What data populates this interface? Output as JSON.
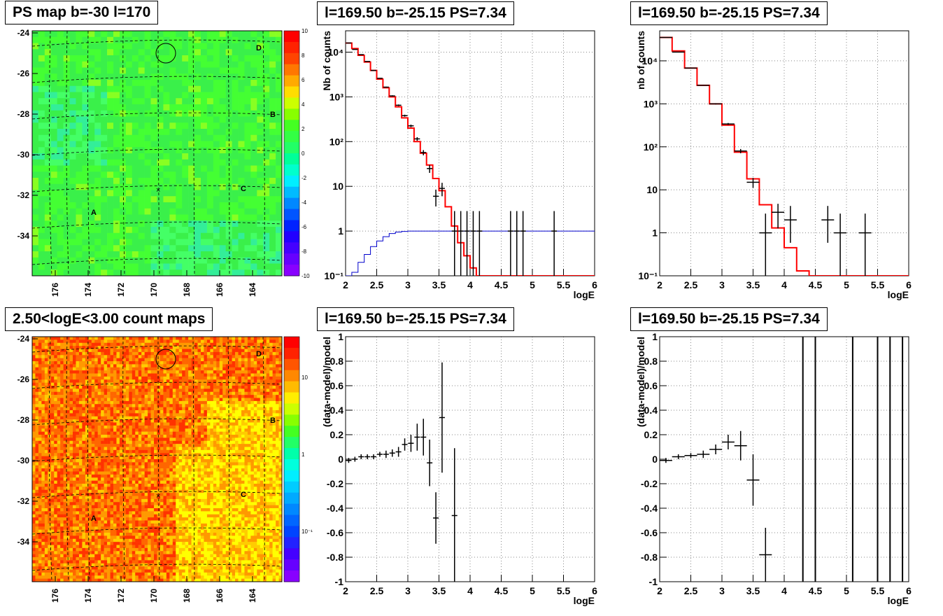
{
  "colors": {
    "data": "#000000",
    "model_total": "#ff0000",
    "model_component": "#0000cc",
    "grid": "#888888"
  },
  "maps": [
    {
      "title": "PS map b=-30 l=170",
      "y_ticks": [
        "-24",
        "-26",
        "-28",
        "-30",
        "-32",
        "-34"
      ],
      "x_ticks": [
        "176",
        "174",
        "172",
        "170",
        "168",
        "166",
        "164"
      ],
      "colorbar_ticks": [
        "10",
        "8",
        "6",
        "4",
        "2",
        "0",
        "-2",
        "-4",
        "-6",
        "-8",
        "-10"
      ],
      "labels": [
        "A",
        "B",
        "C",
        "D"
      ],
      "palette": "ps"
    },
    {
      "title": "2.50<logE<3.00 count maps",
      "y_ticks": [
        "-24",
        "-26",
        "-28",
        "-30",
        "-32",
        "-34"
      ],
      "x_ticks": [
        "176",
        "174",
        "172",
        "170",
        "168",
        "166",
        "164"
      ],
      "colorbar_ticks": [
        "10",
        "1",
        "10⁻¹"
      ],
      "labels": [
        "A",
        "B",
        "C",
        "D"
      ],
      "palette": "counts"
    }
  ],
  "chart_data": [
    {
      "type": "line",
      "title": "l=169.50 b=-25.15 PS=7.34",
      "xlabel": "logE",
      "ylabel": "Nb of counts",
      "log_y": true,
      "grid": true,
      "xlim": [
        2,
        6
      ],
      "ylim": [
        0.1,
        30000
      ],
      "x_ticks": [
        "2",
        "2.5",
        "3",
        "3.5",
        "4",
        "4.5",
        "5",
        "5.5",
        "6"
      ],
      "y_ticks": [
        "10⁻¹",
        "1",
        "10",
        "10²",
        "10³",
        "10⁴"
      ],
      "bin_edges": [
        2.0,
        2.1,
        2.2,
        2.3,
        2.4,
        2.5,
        2.6,
        2.7,
        2.8,
        2.9,
        3.0,
        3.1,
        3.2,
        3.3,
        3.4,
        3.5,
        3.6,
        3.7,
        3.8,
        3.9,
        4.0,
        4.1,
        4.2
      ],
      "model_total": [
        16000,
        12000,
        8500,
        6000,
        3900,
        2500,
        1600,
        1000,
        600,
        340,
        200,
        100,
        55,
        30,
        15,
        8,
        3.5,
        1.3,
        0.55,
        0.28,
        0.15,
        0.1
      ],
      "model_component": [
        0.1,
        0.12,
        0.2,
        0.3,
        0.45,
        0.6,
        0.75,
        0.88,
        0.95,
        0.98,
        1,
        1,
        1,
        1,
        1,
        1,
        1,
        1,
        1,
        1,
        1,
        1
      ],
      "data_points": [
        {
          "x": 2.05,
          "y": 16000
        },
        {
          "x": 2.15,
          "y": 11500
        },
        {
          "x": 2.25,
          "y": 8800
        },
        {
          "x": 2.35,
          "y": 6200
        },
        {
          "x": 2.45,
          "y": 3900
        },
        {
          "x": 2.55,
          "y": 2600
        },
        {
          "x": 2.65,
          "y": 1650
        },
        {
          "x": 2.75,
          "y": 1050
        },
        {
          "x": 2.85,
          "y": 650
        },
        {
          "x": 2.95,
          "y": 380
        },
        {
          "x": 3.05,
          "y": 225
        },
        {
          "x": 3.15,
          "y": 115
        },
        {
          "x": 3.25,
          "y": 57
        },
        {
          "x": 3.35,
          "y": 25
        },
        {
          "x": 3.45,
          "y": 6
        },
        {
          "x": 3.55,
          "y": 9
        },
        {
          "x": 3.75,
          "y": 1
        },
        {
          "x": 3.85,
          "y": 1
        },
        {
          "x": 3.95,
          "y": 1
        },
        {
          "x": 4.05,
          "y": 1
        },
        {
          "x": 4.15,
          "y": 1
        },
        {
          "x": 4.65,
          "y": 1
        },
        {
          "x": 4.75,
          "y": 1
        },
        {
          "x": 4.85,
          "y": 1
        },
        {
          "x": 5.35,
          "y": 1
        }
      ]
    },
    {
      "type": "line",
      "title": "l=169.50 b=-25.15 PS=7.34",
      "xlabel": "logE",
      "ylabel": "nb of counts",
      "log_y": true,
      "grid": true,
      "xlim": [
        2,
        6
      ],
      "ylim": [
        0.1,
        50000
      ],
      "x_ticks": [
        "2",
        "2.5",
        "3",
        "3.5",
        "4",
        "4.5",
        "5",
        "5.5",
        "6"
      ],
      "y_ticks": [
        "10⁻¹",
        "1",
        "10",
        "10²",
        "10³",
        "10⁴"
      ],
      "bin_edges": [
        2.0,
        2.2,
        2.4,
        2.6,
        2.8,
        3.0,
        3.2,
        3.4,
        3.6,
        3.8,
        4.0,
        4.2,
        4.4,
        4.6
      ],
      "model_total": [
        35000,
        17000,
        6800,
        2700,
        1000,
        320,
        75,
        18,
        4.5,
        1.3,
        0.45,
        0.13,
        0.1
      ],
      "data_points": [
        {
          "x": 2.1,
          "y": 35000
        },
        {
          "x": 2.3,
          "y": 16000
        },
        {
          "x": 2.5,
          "y": 6800
        },
        {
          "x": 2.7,
          "y": 2700
        },
        {
          "x": 2.9,
          "y": 1000
        },
        {
          "x": 3.1,
          "y": 340
        },
        {
          "x": 3.3,
          "y": 80
        },
        {
          "x": 3.5,
          "y": 15
        },
        {
          "x": 3.7,
          "y": 1
        },
        {
          "x": 3.9,
          "y": 3
        },
        {
          "x": 4.1,
          "y": 2
        },
        {
          "x": 4.7,
          "y": 2
        },
        {
          "x": 4.9,
          "y": 1
        },
        {
          "x": 5.3,
          "y": 1
        }
      ]
    },
    {
      "type": "scatter",
      "title": "l=169.50 b=-25.15 PS=7.34",
      "xlabel": "logE",
      "ylabel": "(data-model)/model",
      "grid": true,
      "xlim": [
        2,
        6
      ],
      "ylim": [
        -1,
        1
      ],
      "x_ticks": [
        "2",
        "2.5",
        "3",
        "3.5",
        "4",
        "4.5",
        "5",
        "5.5",
        "6"
      ],
      "y_ticks": [
        "-1",
        "-0.8",
        "-0.6",
        "-0.4",
        "-0.2",
        "0",
        "0.2",
        "0.4",
        "0.6",
        "0.8",
        "1"
      ],
      "points": [
        {
          "x": 2.05,
          "y": -0.01,
          "err": 0.02
        },
        {
          "x": 2.15,
          "y": 0.0,
          "err": 0.02
        },
        {
          "x": 2.25,
          "y": 0.02,
          "err": 0.02
        },
        {
          "x": 2.35,
          "y": 0.02,
          "err": 0.02
        },
        {
          "x": 2.45,
          "y": 0.02,
          "err": 0.02
        },
        {
          "x": 2.55,
          "y": 0.04,
          "err": 0.02
        },
        {
          "x": 2.65,
          "y": 0.04,
          "err": 0.03
        },
        {
          "x": 2.75,
          "y": 0.05,
          "err": 0.03
        },
        {
          "x": 2.85,
          "y": 0.06,
          "err": 0.04
        },
        {
          "x": 2.95,
          "y": 0.12,
          "err": 0.05
        },
        {
          "x": 3.05,
          "y": 0.13,
          "err": 0.07
        },
        {
          "x": 3.15,
          "y": 0.18,
          "err": 0.11
        },
        {
          "x": 3.25,
          "y": 0.18,
          "err": 0.15
        },
        {
          "x": 3.35,
          "y": -0.03,
          "err": 0.19
        },
        {
          "x": 3.45,
          "y": -0.48,
          "err": 0.21
        },
        {
          "x": 3.55,
          "y": 0.34,
          "err": 0.45
        },
        {
          "x": 3.75,
          "y": -0.46,
          "err": 0.55
        }
      ]
    },
    {
      "type": "scatter",
      "title": "l=169.50 b=-25.15 PS=7.34",
      "xlabel": "logE",
      "ylabel": "(data-model)/model",
      "grid": true,
      "xlim": [
        2,
        6
      ],
      "ylim": [
        -1,
        1
      ],
      "x_ticks": [
        "2",
        "2.5",
        "3",
        "3.5",
        "4",
        "4.5",
        "5",
        "5.5",
        "6"
      ],
      "y_ticks": [
        "-1",
        "-0.8",
        "-0.6",
        "-0.4",
        "-0.2",
        "0",
        "0.2",
        "0.4",
        "0.6",
        "0.8",
        "1"
      ],
      "points": [
        {
          "x": 2.1,
          "y": -0.01,
          "err": 0.02
        },
        {
          "x": 2.3,
          "y": 0.02,
          "err": 0.02
        },
        {
          "x": 2.5,
          "y": 0.03,
          "err": 0.02
        },
        {
          "x": 2.7,
          "y": 0.04,
          "err": 0.03
        },
        {
          "x": 2.9,
          "y": 0.08,
          "err": 0.04
        },
        {
          "x": 3.1,
          "y": 0.14,
          "err": 0.06
        },
        {
          "x": 3.3,
          "y": 0.11,
          "err": 0.12
        },
        {
          "x": 3.5,
          "y": -0.17,
          "err": 0.21
        },
        {
          "x": 3.7,
          "y": -0.78,
          "err": 0.22
        }
      ],
      "vertical_bars_x": [
        4.3,
        4.5,
        5.1,
        5.5,
        5.7,
        5.9
      ]
    }
  ]
}
